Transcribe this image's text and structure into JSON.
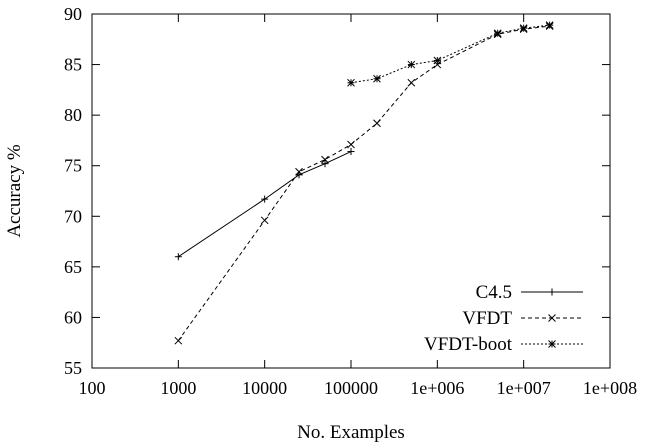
{
  "chart_data": {
    "type": "line",
    "xlabel": "No. Examples",
    "ylabel": "Accuracy %",
    "xscale": "log",
    "xlim": [
      100,
      100000000
    ],
    "ylim": [
      55,
      90
    ],
    "xticks": [
      {
        "value": 100,
        "label": "100"
      },
      {
        "value": 1000,
        "label": "1000"
      },
      {
        "value": 10000,
        "label": "10000"
      },
      {
        "value": 100000,
        "label": "100000"
      },
      {
        "value": 1000000,
        "label": "1e+006"
      },
      {
        "value": 10000000,
        "label": "1e+007"
      },
      {
        "value": 100000000,
        "label": "1e+008"
      }
    ],
    "yticks": [
      {
        "value": 55,
        "label": "55"
      },
      {
        "value": 60,
        "label": "60"
      },
      {
        "value": 65,
        "label": "65"
      },
      {
        "value": 70,
        "label": "70"
      },
      {
        "value": 75,
        "label": "75"
      },
      {
        "value": 80,
        "label": "80"
      },
      {
        "value": 85,
        "label": "85"
      },
      {
        "value": 90,
        "label": "90"
      }
    ],
    "grid": false,
    "legend_position": "bottom-right",
    "series": [
      {
        "name": "C4.5",
        "line_style": "solid",
        "marker": "plus",
        "x": [
          1000,
          10000,
          25000,
          50000,
          100000
        ],
        "y": [
          66.0,
          71.7,
          74.1,
          75.2,
          76.4
        ]
      },
      {
        "name": "VFDT",
        "line_style": "dashed",
        "marker": "cross",
        "x": [
          1000,
          10000,
          25000,
          50000,
          100000,
          200000,
          500000,
          1000000,
          5000000,
          10000000,
          20000000
        ],
        "y": [
          57.7,
          69.6,
          74.4,
          75.6,
          77.1,
          79.2,
          83.2,
          85.0,
          88.0,
          88.5,
          88.8
        ]
      },
      {
        "name": "VFDT-boot",
        "line_style": "dotted",
        "marker": "star",
        "x": [
          100000,
          200000,
          500000,
          1000000,
          5000000,
          10000000,
          20000000
        ],
        "y": [
          83.2,
          83.6,
          85.0,
          85.4,
          88.1,
          88.6,
          88.9
        ]
      }
    ]
  }
}
